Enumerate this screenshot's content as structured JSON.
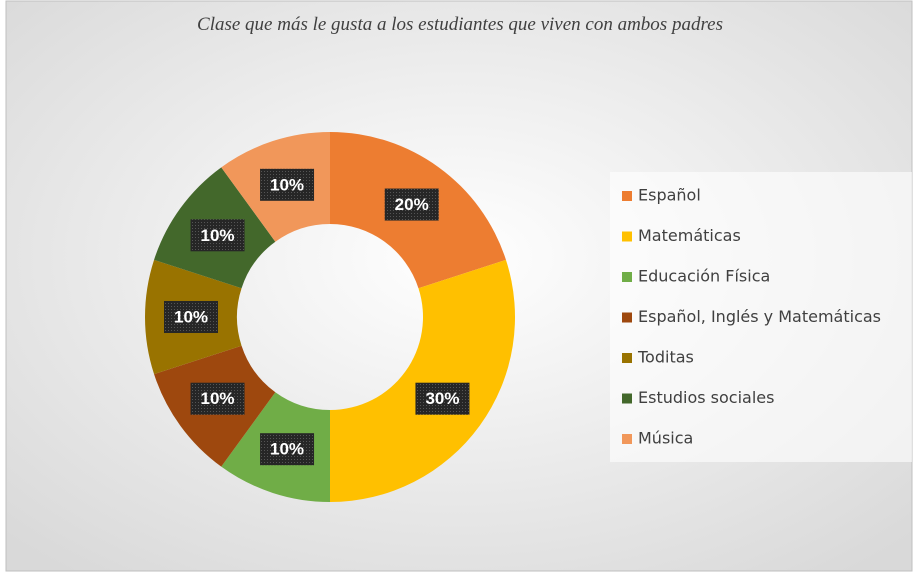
{
  "chart_data": {
    "type": "donut",
    "title": "Clase que más le gusta a los estudiantes que viven con ambos padres",
    "categories": [
      "Español",
      "Matemáticas",
      "Educación Física",
      "Español, Inglés y Matemáticas",
      "Toditas",
      "Estudios sociales",
      "Música"
    ],
    "values": [
      20,
      30,
      10,
      10,
      10,
      10,
      10
    ],
    "value_labels": [
      "20%",
      "30%",
      "10%",
      "10%",
      "10%",
      "10%",
      "10%"
    ],
    "colors": [
      "#ED7D31",
      "#FFC000",
      "#70AD47",
      "#9E480E",
      "#997300",
      "#43682B",
      "#F1975A"
    ],
    "legend": "right"
  }
}
